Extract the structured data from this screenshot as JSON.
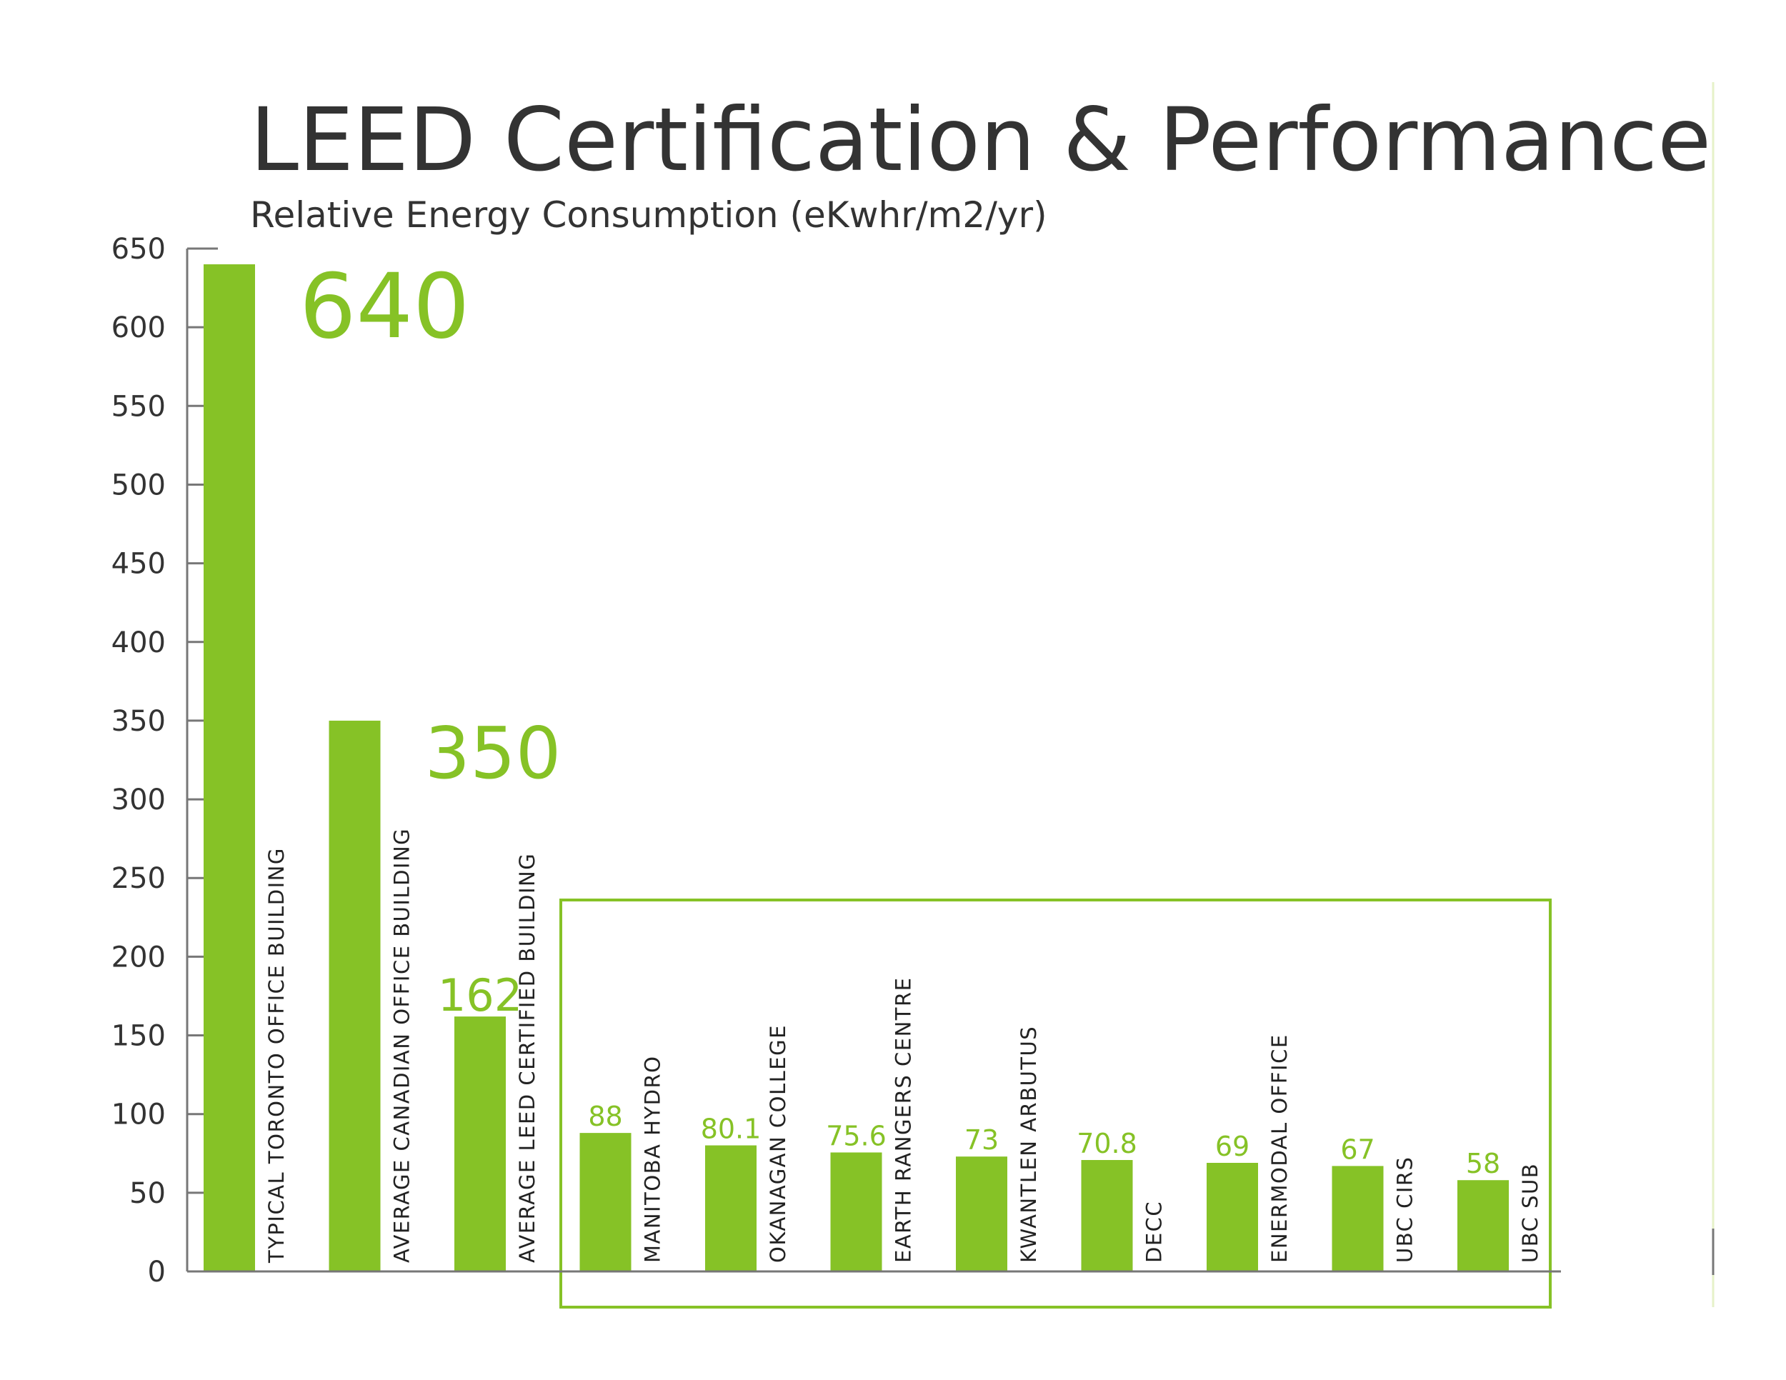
{
  "chart_data": {
    "type": "bar",
    "title": "LEED Certification & Performance",
    "subtitle": "Relative Energy Consumption (eKwhr/m2/yr)",
    "categories": [
      "TYPICAL TORONTO OFFICE BUILDING",
      "AVERAGE CANADIAN OFFICE BUILDING",
      "AVERAGE LEED CERTIFIED BUILDING",
      "MANITOBA HYDRO",
      "OKANAGAN COLLEGE",
      "EARTH RANGERS CENTRE",
      "KWANTLEN ARBUTUS",
      "DECC",
      "ENERMODAL OFFICE",
      "UBC CIRS",
      "UBC SUB"
    ],
    "values": [
      640,
      350,
      162,
      88,
      80.1,
      75.6,
      73,
      70.8,
      69,
      67,
      58
    ],
    "value_labels": [
      "640",
      "350",
      "162",
      "88",
      "80.1",
      "75.6",
      "73",
      "70.8",
      "69",
      "67",
      "58"
    ],
    "y_ticks": [
      "0",
      "50",
      "100",
      "150",
      "200",
      "250",
      "300",
      "350",
      "400",
      "450",
      "500",
      "550",
      "600",
      "650"
    ],
    "ylim": [
      0,
      650
    ],
    "grid": false,
    "legend": "none",
    "highlight_group": [
      "MANITOBA HYDRO",
      "OKANAGAN COLLEGE",
      "EARTH RANGERS CENTRE",
      "KWANTLEN ARBUTUS",
      "DECC",
      "ENERMODAL OFFICE",
      "UBC CIRS",
      "UBC SUB"
    ],
    "colors": {
      "bar": "#86c226",
      "text": "#333333",
      "axis": "#777777",
      "highlight_box": "#86c226"
    }
  }
}
